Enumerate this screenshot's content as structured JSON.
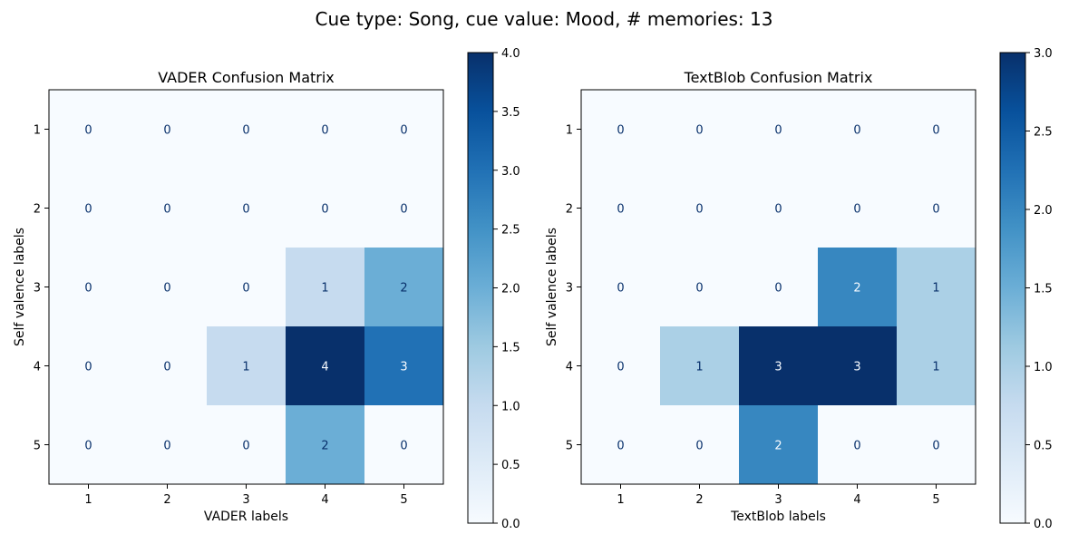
{
  "suptitle": "Cue type: Song, cue value: Mood, # memories: 13",
  "chart_data": [
    {
      "type": "heatmap",
      "title": "VADER Confusion Matrix",
      "xlabel": "VADER labels",
      "ylabel": "Self valence labels",
      "x_categories": [
        "1",
        "2",
        "3",
        "4",
        "5"
      ],
      "y_categories": [
        "1",
        "2",
        "3",
        "4",
        "5"
      ],
      "values": [
        [
          0,
          0,
          0,
          0,
          0
        ],
        [
          0,
          0,
          0,
          0,
          0
        ],
        [
          0,
          0,
          0,
          1,
          2
        ],
        [
          0,
          0,
          1,
          4,
          3
        ],
        [
          0,
          0,
          0,
          2,
          0
        ]
      ],
      "colormap": "Blues",
      "colorbar": {
        "vmin": 0,
        "vmax": 4,
        "ticks": [
          0,
          0.5,
          1,
          1.5,
          2,
          2.5,
          3,
          3.5,
          4
        ],
        "tick_labels": [
          "0.0",
          "0.5",
          "1.0",
          "1.5",
          "2.0",
          "2.5",
          "3.0",
          "3.5",
          "4.0"
        ]
      }
    },
    {
      "type": "heatmap",
      "title": "TextBlob Confusion Matrix",
      "xlabel": "TextBlob labels",
      "ylabel": "Self valence labels",
      "x_categories": [
        "1",
        "2",
        "3",
        "4",
        "5"
      ],
      "y_categories": [
        "1",
        "2",
        "3",
        "4",
        "5"
      ],
      "values": [
        [
          0,
          0,
          0,
          0,
          0
        ],
        [
          0,
          0,
          0,
          0,
          0
        ],
        [
          0,
          0,
          0,
          2,
          1
        ],
        [
          0,
          1,
          3,
          3,
          1
        ],
        [
          0,
          0,
          2,
          0,
          0
        ]
      ],
      "colormap": "Blues",
      "colorbar": {
        "vmin": 0,
        "vmax": 3,
        "ticks": [
          0,
          0.5,
          1,
          1.5,
          2,
          2.5,
          3
        ],
        "tick_labels": [
          "0.0",
          "0.5",
          "1.0",
          "1.5",
          "2.0",
          "2.5",
          "3.0"
        ]
      }
    }
  ]
}
